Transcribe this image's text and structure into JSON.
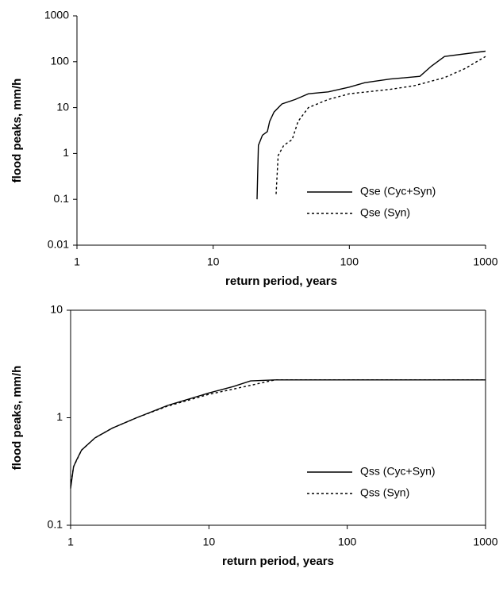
{
  "chart_data": [
    {
      "type": "line",
      "xlabel": "return period, years",
      "ylabel": "flood peaks, mm/h",
      "xscale": "log",
      "yscale": "log",
      "xlim": [
        1,
        1000
      ],
      "ylim": [
        0.01,
        1000
      ],
      "xticks": [
        1,
        10,
        100,
        1000
      ],
      "yticks": [
        0.01,
        0.1,
        1,
        10,
        100,
        1000
      ],
      "frame": false,
      "legend": "lower right",
      "series": [
        {
          "name": "Qse (Cyc+Syn)",
          "color": "#000000",
          "style": "solid",
          "x": [
            21,
            21.5,
            23,
            25,
            26,
            28,
            32,
            40,
            50,
            70,
            100,
            130,
            200,
            330,
            400,
            500,
            1000
          ],
          "values": [
            0.1,
            1.5,
            2.5,
            3,
            5,
            8,
            12,
            15,
            20,
            22,
            28,
            35,
            42,
            48,
            80,
            130,
            170
          ]
        },
        {
          "name": "Qse (Syn)",
          "color": "#000000",
          "style": "dashed",
          "x": [
            29,
            30,
            33,
            38,
            42,
            50,
            70,
            100,
            200,
            300,
            500,
            700,
            1000
          ],
          "values": [
            0.13,
            0.9,
            1.5,
            2,
            5,
            10,
            15,
            20,
            25,
            30,
            45,
            70,
            130
          ]
        }
      ]
    },
    {
      "type": "line",
      "xlabel": "return period, years",
      "ylabel": "flood peaks, mm/h",
      "xscale": "log",
      "yscale": "log",
      "xlim": [
        1,
        1000
      ],
      "ylim": [
        0.1,
        10
      ],
      "xticks": [
        1,
        10,
        100,
        1000
      ],
      "yticks": [
        0.1,
        1,
        10
      ],
      "frame": true,
      "legend": "lower right",
      "series": [
        {
          "name": "Qss (Cyc+Syn)",
          "color": "#000000",
          "style": "solid",
          "x": [
            1,
            1.05,
            1.1,
            1.2,
            1.5,
            2,
            3,
            5,
            10,
            15,
            20,
            30,
            1000
          ],
          "values": [
            0.22,
            0.35,
            0.4,
            0.5,
            0.65,
            0.8,
            1.0,
            1.3,
            1.7,
            1.95,
            2.2,
            2.25,
            2.25
          ]
        },
        {
          "name": "Qss (Syn)",
          "color": "#000000",
          "style": "dashed",
          "x": [
            1,
            1.05,
            1.2,
            1.5,
            2,
            3,
            5,
            10,
            20,
            30,
            1000
          ],
          "values": [
            0.23,
            0.35,
            0.5,
            0.65,
            0.8,
            1.0,
            1.28,
            1.65,
            2.0,
            2.25,
            2.25
          ]
        }
      ]
    }
  ]
}
